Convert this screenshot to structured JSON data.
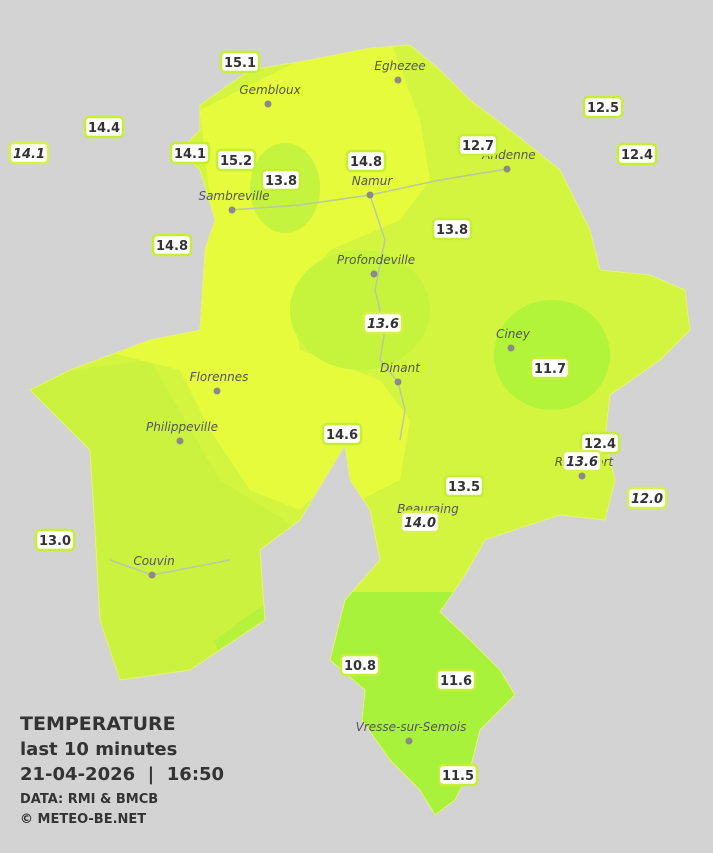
{
  "stations": [
    {
      "label": "15.1"
    },
    {
      "label": "14.4"
    },
    {
      "label": "14.1",
      "italic": true
    },
    {
      "label": "14.1"
    },
    {
      "label": "15.2"
    },
    {
      "label": "13.8"
    },
    {
      "label": "14.8"
    },
    {
      "label": "12.7"
    },
    {
      "label": "12.5"
    },
    {
      "label": "12.4"
    },
    {
      "label": "14.8"
    },
    {
      "label": "13.8"
    },
    {
      "label": "13.6",
      "italic": true
    },
    {
      "label": "11.7"
    },
    {
      "label": "14.6"
    },
    {
      "label": "12.4"
    },
    {
      "label": "13.6",
      "italic": true
    },
    {
      "label": "12.0",
      "italic": true
    },
    {
      "label": "13.5"
    },
    {
      "label": "14.0",
      "italic": true
    },
    {
      "label": "13.0"
    },
    {
      "label": "10.8"
    },
    {
      "label": "11.6"
    },
    {
      "label": "11.5"
    }
  ],
  "cities": [
    {
      "name": "Eghezee"
    },
    {
      "name": "Gembloux"
    },
    {
      "name": "Andenne"
    },
    {
      "name": "Namur"
    },
    {
      "name": "Sambreville"
    },
    {
      "name": "Profondeville"
    },
    {
      "name": "Ciney"
    },
    {
      "name": "Dinant"
    },
    {
      "name": "Florennes"
    },
    {
      "name": "Philippeville"
    },
    {
      "name": "Beauraing"
    },
    {
      "name": "Rochefort"
    },
    {
      "name": "Couvin"
    },
    {
      "name": "Vresse-sur-Semois"
    }
  ],
  "legend": {
    "title": "TEMPERATURE",
    "subtitle": "last 10 minutes",
    "datetime": "21-04-2026  |  16:50",
    "source": "DATA: RMI & BMCB",
    "copyright": "© METEO-BE.NET"
  }
}
